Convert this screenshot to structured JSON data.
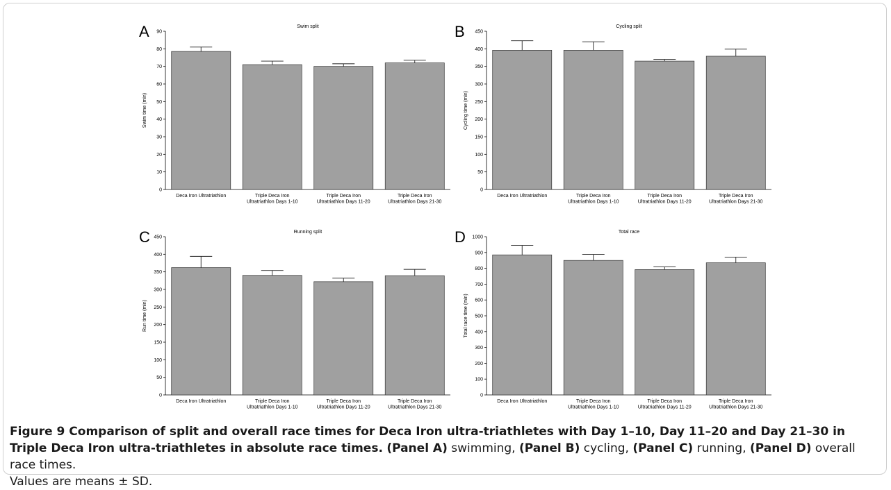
{
  "chart_data": [
    {
      "type": "bar",
      "panel_letter": "A",
      "title": "Swim split",
      "ylabel": "Swim time (min)",
      "xlabel": "",
      "ylim": [
        0,
        90
      ],
      "yticks": [
        0,
        10,
        20,
        30,
        40,
        50,
        60,
        70,
        80,
        90
      ],
      "categories": [
        [
          "Deca Iron Ultratriathlon"
        ],
        [
          "Triple Deca Iron",
          "Ultratriathlon Days 1-10"
        ],
        [
          "Triple Deca Iron",
          "Ultratriathlon Days 11-20"
        ],
        [
          "Triple Deca Iron",
          "Ultratriathlon Days 21-30"
        ]
      ],
      "values": [
        78.5,
        71,
        70,
        72
      ],
      "errors": [
        2.5,
        2,
        1.5,
        1.5
      ],
      "bar_color": "#a0a0a0"
    },
    {
      "type": "bar",
      "panel_letter": "B",
      "title": "Cycling split",
      "ylabel": "Cycling time (min)",
      "xlabel": "",
      "ylim": [
        0,
        450
      ],
      "yticks": [
        0,
        50,
        100,
        150,
        200,
        250,
        300,
        350,
        400,
        450
      ],
      "categories": [
        [
          "Deca Iron Ultratriathlon"
        ],
        [
          "Triple Deca Iron",
          "Ultratriathlon Days 1-10"
        ],
        [
          "Triple Deca Iron",
          "Ultratriathlon Days 11-20"
        ],
        [
          "Triple Deca Iron",
          "Ultratriathlon Days 21-30"
        ]
      ],
      "values": [
        396,
        396,
        365,
        379
      ],
      "errors": [
        27,
        24,
        5,
        20
      ],
      "bar_color": "#a0a0a0"
    },
    {
      "type": "bar",
      "panel_letter": "C",
      "title": "Running split",
      "ylabel": "Run time (min)",
      "xlabel": "",
      "ylim": [
        0,
        450
      ],
      "yticks": [
        0,
        50,
        100,
        150,
        200,
        250,
        300,
        350,
        400,
        450
      ],
      "categories": [
        [
          "Deca Iron Ultratriathlon"
        ],
        [
          "Triple Deca Iron",
          "Ultratriathlon Days 1-10"
        ],
        [
          "Triple Deca Iron",
          "Ultratriathlon Days 11-20"
        ],
        [
          "Triple Deca Iron",
          "Ultratriathlon Days 21-30"
        ]
      ],
      "values": [
        362,
        340,
        322,
        339
      ],
      "errors": [
        32,
        14,
        10,
        18
      ],
      "bar_color": "#a0a0a0"
    },
    {
      "type": "bar",
      "panel_letter": "D",
      "title": "Total race",
      "ylabel": "Total race time (min)",
      "xlabel": "",
      "ylim": [
        0,
        1000
      ],
      "yticks": [
        0,
        100,
        200,
        300,
        400,
        500,
        600,
        700,
        800,
        900,
        1000
      ],
      "categories": [
        [
          "Deca Iron Ultratriathlon"
        ],
        [
          "Triple Deca Iron",
          "Ultratriathlon Days 1-10"
        ],
        [
          "Triple Deca Iron",
          "Ultratriathlon Days 11-20"
        ],
        [
          "Triple Deca Iron",
          "Ultratriathlon Days 21-30"
        ]
      ],
      "values": [
        885,
        850,
        792,
        835
      ],
      "errors": [
        60,
        38,
        17,
        36
      ],
      "bar_color": "#a0a0a0"
    }
  ],
  "caption": {
    "label": "Figure 9",
    "title": " Comparison of split and overall race times for Deca Iron ultra-triathletes with Day 1–10, Day 11–20 and Day 21–30 in Triple Deca Iron ultra-triathletes in absolute race times.",
    "panel_a": "(Panel A)",
    "text_a": " swimming, ",
    "panel_b": "(Panel B)",
    "text_b": " cycling, ",
    "panel_c": "(Panel C)",
    "text_c": " running, ",
    "panel_d": "(Panel D)",
    "text_d": " overall race times.",
    "note": "Values are means ± SD."
  }
}
